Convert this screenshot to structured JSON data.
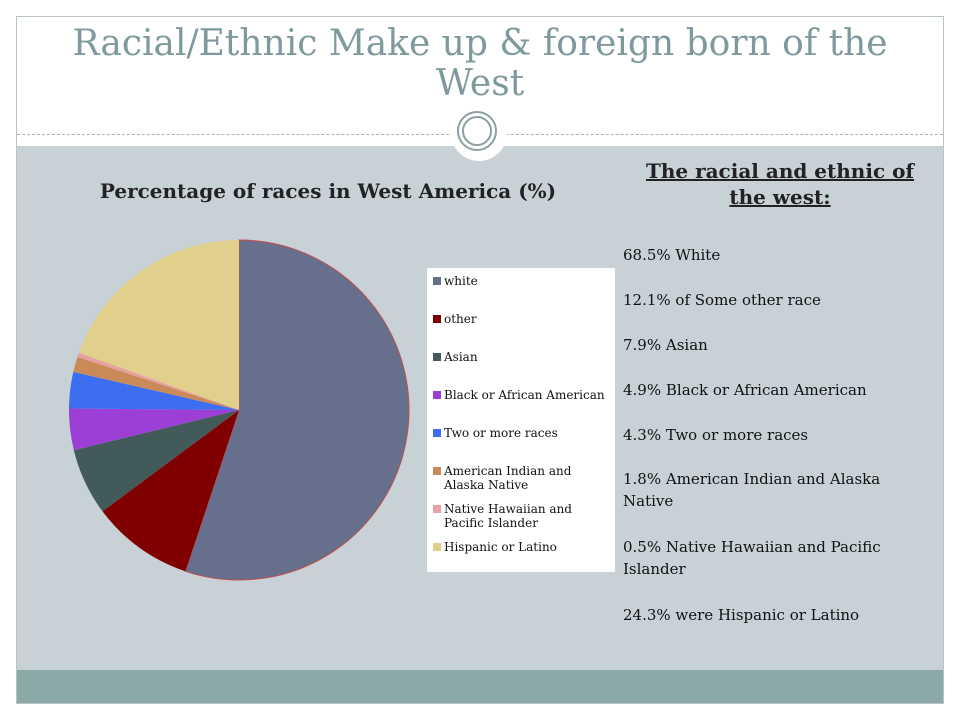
{
  "slide": {
    "title": "Racial/Ethnic Make up & foreign born of the West"
  },
  "side_panel": {
    "heading": "The racial and ethnic of the west:",
    "stats": [
      "68.5% White",
      "12.1% of Some other race",
      "7.9% Asian",
      "4.9% Black or African American",
      "4.3% Two or more races",
      "1.8% American Indian and Alaska Native",
      "0.5% Native Hawaiian and Pacific Islander",
      "24.3% were Hispanic or Latino"
    ]
  },
  "chart_data": {
    "type": "pie",
    "title": "Percentage of races in West America (%)",
    "legend_position": "right",
    "slices": [
      {
        "name": "white",
        "value": 68.5,
        "color": "#666f8c"
      },
      {
        "name": "other",
        "value": 12.1,
        "color": "#800000"
      },
      {
        "name": "Asian",
        "value": 7.9,
        "color": "#435a5a"
      },
      {
        "name": "Black or African American",
        "value": 4.9,
        "color": "#9b3fd6"
      },
      {
        "name": "Two or more races",
        "value": 4.3,
        "color": "#3d6ef2"
      },
      {
        "name": "American Indian and Alaska Native",
        "value": 1.8,
        "color": "#c98a57"
      },
      {
        "name": "Native Hawaiian and Pacific Islander",
        "value": 0.5,
        "color": "#e9a0a0"
      },
      {
        "name": "Hispanic or Latino",
        "value": 24.3,
        "color": "#e1cf8c"
      }
    ]
  }
}
